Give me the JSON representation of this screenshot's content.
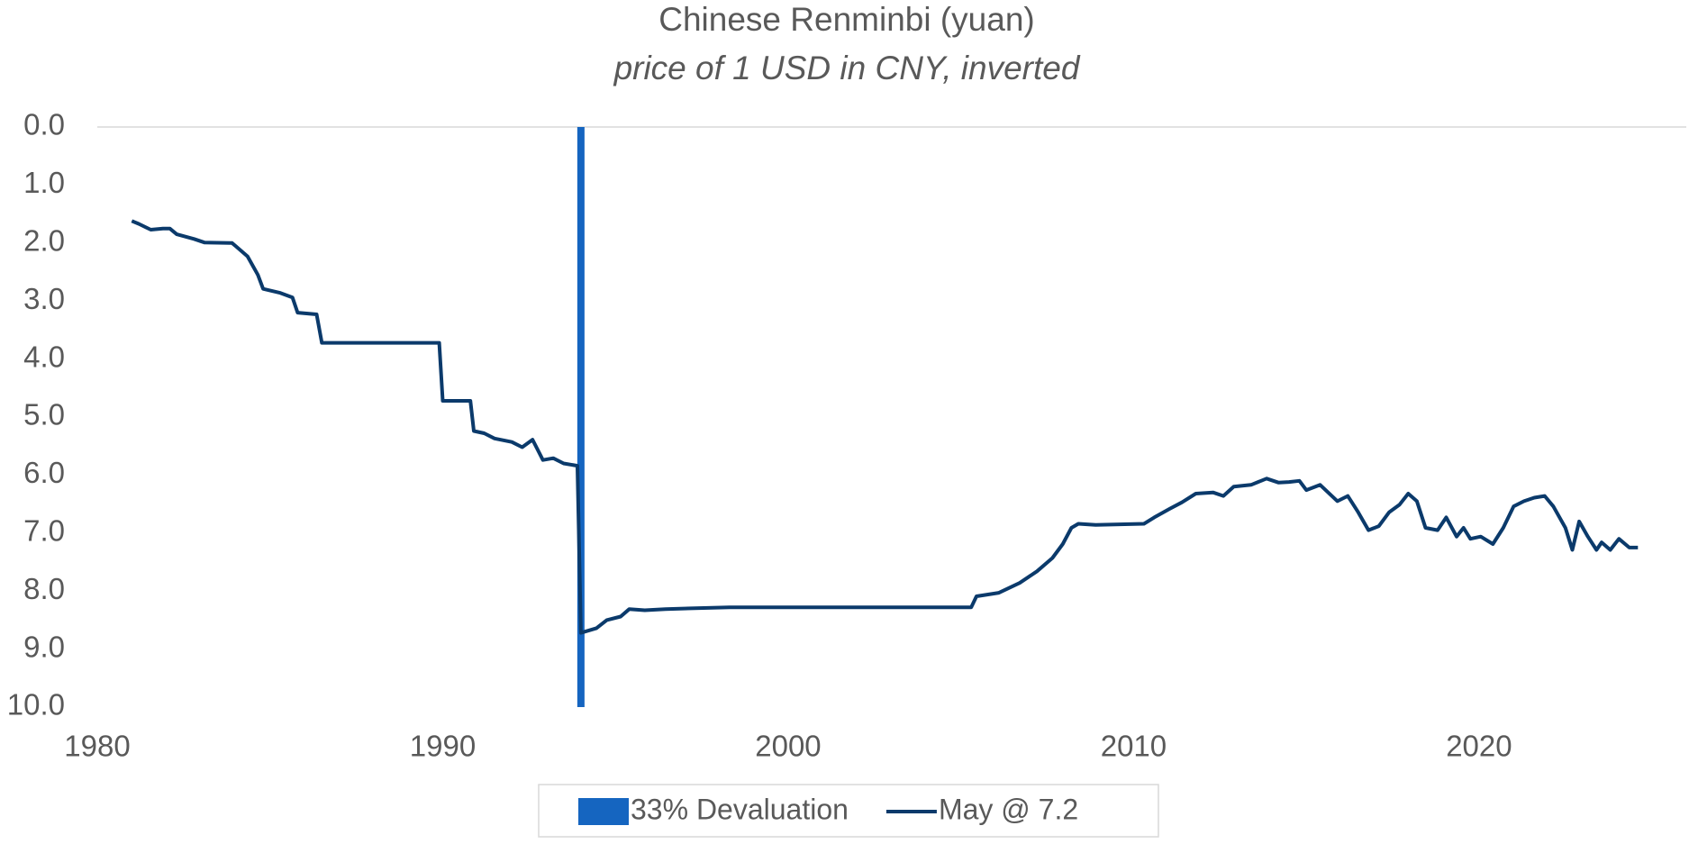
{
  "chart_data": {
    "type": "line",
    "title": "Chinese Renminbi (yuan)",
    "subtitle": "price of 1 USD in CNY, inverted",
    "xlim": [
      1980,
      2026
    ],
    "xticks": [
      1980,
      1990,
      2000,
      2010,
      2020
    ],
    "ylim": [
      0,
      10
    ],
    "y_inverted": true,
    "yticks": [
      {
        "value": 0,
        "label": "0.0"
      },
      {
        "value": 1,
        "label": "1.0"
      },
      {
        "value": 2,
        "label": "2.0"
      },
      {
        "value": 3,
        "label": "3.0"
      },
      {
        "value": 4,
        "label": "4.0"
      },
      {
        "value": 5,
        "label": "5.0"
      },
      {
        "value": 6,
        "label": "6.0"
      },
      {
        "value": 7,
        "label": "7.0"
      },
      {
        "value": 8,
        "label": "8.0"
      },
      {
        "value": 9,
        "label": "9.0"
      },
      {
        "value": 10,
        "label": "10.0"
      }
    ],
    "grid": false,
    "legend": "bottom",
    "series": [
      {
        "name": "33% Devaluation",
        "type": "bar",
        "color": "#1565c0",
        "x": [
          1994.0
        ],
        "values": [
          10
        ]
      },
      {
        "name": "May @ 7.2",
        "type": "line",
        "color": "#0b3a6b",
        "x": [
          1981.0,
          1981.2,
          1981.55,
          1981.9,
          1982.1,
          1982.3,
          1982.8,
          1983.1,
          1983.9,
          1984.0,
          1984.35,
          1984.65,
          1984.8,
          1985.3,
          1985.65,
          1985.8,
          1986.35,
          1986.5,
          1989.9,
          1990.0,
          1990.8,
          1990.9,
          1991.2,
          1991.5,
          1992.0,
          1992.3,
          1992.6,
          1992.9,
          1993.2,
          1993.5,
          1993.9,
          1994.0,
          1994.45,
          1994.75,
          1995.15,
          1995.4,
          1995.85,
          1996.45,
          1998.3,
          2005.3,
          2005.45,
          2006.1,
          2006.7,
          2007.2,
          2007.65,
          2007.95,
          2008.2,
          2008.4,
          2008.9,
          2010.3,
          2010.6,
          2011.05,
          2011.4,
          2011.8,
          2012.3,
          2012.6,
          2012.9,
          2013.4,
          2013.85,
          2014.2,
          2014.5,
          2014.8,
          2015.0,
          2015.4,
          2015.9,
          2016.2,
          2016.5,
          2016.8,
          2017.1,
          2017.4,
          2017.7,
          2017.95,
          2018.2,
          2018.45,
          2018.8,
          2019.05,
          2019.35,
          2019.55,
          2019.75,
          2020.05,
          2020.4,
          2020.7,
          2021.0,
          2021.3,
          2021.6,
          2021.9,
          2022.15,
          2022.5,
          2022.7,
          2022.9,
          2023.15,
          2023.4,
          2023.55,
          2023.8,
          2024.05,
          2024.35,
          2024.6
        ],
        "values": [
          1.62,
          1.67,
          1.77,
          1.75,
          1.75,
          1.85,
          1.93,
          1.99,
          2.0,
          2.05,
          2.23,
          2.55,
          2.79,
          2.86,
          2.94,
          3.2,
          3.23,
          3.72,
          3.72,
          4.72,
          4.72,
          5.24,
          5.28,
          5.37,
          5.43,
          5.52,
          5.39,
          5.74,
          5.71,
          5.8,
          5.84,
          8.72,
          8.64,
          8.5,
          8.44,
          8.31,
          8.33,
          8.31,
          8.28,
          8.28,
          8.09,
          8.03,
          7.86,
          7.66,
          7.43,
          7.19,
          6.91,
          6.84,
          6.86,
          6.84,
          6.73,
          6.58,
          6.47,
          6.32,
          6.3,
          6.36,
          6.2,
          6.17,
          6.06,
          6.13,
          6.12,
          6.1,
          6.26,
          6.17,
          6.45,
          6.36,
          6.64,
          6.95,
          6.88,
          6.64,
          6.51,
          6.32,
          6.45,
          6.91,
          6.95,
          6.73,
          7.06,
          6.91,
          7.1,
          7.06,
          7.19,
          6.91,
          6.54,
          6.45,
          6.39,
          6.36,
          6.54,
          6.91,
          7.29,
          6.8,
          7.06,
          7.29,
          7.16,
          7.29,
          7.1,
          7.25,
          7.25
        ]
      }
    ]
  }
}
